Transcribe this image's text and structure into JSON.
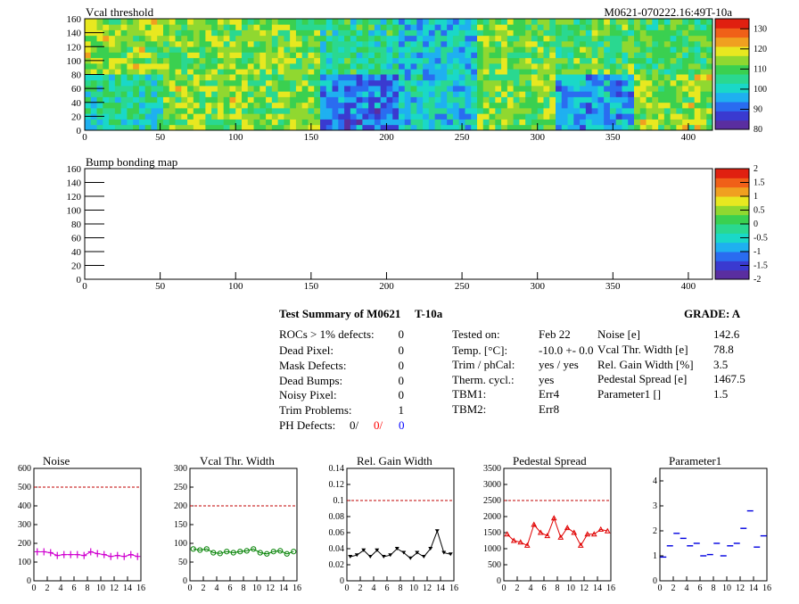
{
  "colors": {
    "palette": [
      "#5a2ea0",
      "#3a3ad0",
      "#2a6cf0",
      "#1fb0f0",
      "#1ad8c8",
      "#2ad890",
      "#3ad050",
      "#90d830",
      "#e8e820",
      "#f0a020",
      "#f06018",
      "#e02010"
    ],
    "noise": "#d000d0",
    "vcal": "#008000",
    "gain": "#000000",
    "pedestal": "#e00000",
    "param1": "#0000e0",
    "ref": "#c00000",
    "red": "#ff0000",
    "blue": "#0000ff"
  },
  "top_map": {
    "title": "Vcal threshold",
    "module_id": "M0621-070222.16:49T-10a",
    "xticks": [
      "0",
      "50",
      "100",
      "150",
      "200",
      "250",
      "300",
      "350",
      "400"
    ],
    "yticks": [
      "0",
      "20",
      "40",
      "60",
      "80",
      "100",
      "120",
      "140",
      "160"
    ],
    "zticks": [
      "80",
      "90",
      "100",
      "110",
      "120",
      "130"
    ]
  },
  "bump_map": {
    "title": "Bump bonding map",
    "xticks": [
      "0",
      "50",
      "100",
      "150",
      "200",
      "250",
      "300",
      "350",
      "400"
    ],
    "yticks": [
      "0",
      "20",
      "40",
      "60",
      "80",
      "100",
      "120",
      "140",
      "160"
    ],
    "zticks": [
      "2",
      "1.5",
      "1",
      "0.5",
      "0",
      "-0.5",
      "-1",
      "-1.5",
      "-2"
    ]
  },
  "summary": {
    "title": "Test Summary of M0621",
    "temp_label": "T-10a",
    "grade": "GRADE:  A",
    "left": [
      {
        "label": "ROCs > 1% defects:",
        "value": "0"
      },
      {
        "label": "Dead Pixel:",
        "value": "0"
      },
      {
        "label": "Mask Defects:",
        "value": "0"
      },
      {
        "label": "Dead Bumps:",
        "value": "0"
      },
      {
        "label": "Noisy Pixel:",
        "value": "0"
      },
      {
        "label": "Trim Problems:",
        "value": "1"
      }
    ],
    "ph_label": "PH Defects:",
    "ph_values": [
      "0/",
      "0/",
      "0"
    ],
    "middle": [
      {
        "label": "Tested on:",
        "value": "Feb 22"
      },
      {
        "label": "Temp. [°C]:",
        "value": "-10.0 +- 0.0"
      },
      {
        "label": "Trim / phCal:",
        "value": "yes / yes"
      },
      {
        "label": "Therm. cycl.:",
        "value": "yes"
      },
      {
        "label": "TBM1:",
        "value": "Err4"
      },
      {
        "label": "TBM2:",
        "value": "Err8"
      }
    ],
    "right": [
      {
        "label": "Noise [e]",
        "value": "142.6"
      },
      {
        "label": "Vcal Thr. Width [e]",
        "value": "78.8"
      },
      {
        "label": "Rel. Gain Width [%]",
        "value": "3.5"
      },
      {
        "label": "Pedestal Spread [e]",
        "value": "1467.5"
      },
      {
        "label": "Parameter1 []",
        "value": "1.5"
      }
    ]
  },
  "chart_data": [
    {
      "type": "heatmap",
      "title": "Vcal threshold",
      "xlim": [
        0,
        416
      ],
      "ylim": [
        0,
        160
      ],
      "zlim": [
        80,
        135
      ],
      "roc_means": [
        [
          114,
          112,
          113,
          105,
          98,
          112,
          110,
          109
        ],
        [
          104,
          114,
          112,
          92,
          100,
          112,
          96,
          114
        ]
      ]
    },
    {
      "type": "heatmap",
      "title": "Bump bonding map",
      "xlim": [
        0,
        416
      ],
      "ylim": [
        0,
        160
      ],
      "zlim": [
        -2,
        2
      ]
    },
    {
      "type": "line",
      "title": "Noise",
      "x": [
        0,
        1,
        2,
        3,
        4,
        5,
        6,
        7,
        8,
        9,
        10,
        11,
        12,
        13,
        14,
        15
      ],
      "values": [
        155,
        155,
        150,
        135,
        140,
        140,
        140,
        135,
        155,
        145,
        140,
        130,
        135,
        130,
        140,
        130
      ],
      "ylim": [
        0,
        600
      ],
      "reference": 500,
      "yticks": [
        "0",
        "100",
        "200",
        "300",
        "400",
        "500",
        "600"
      ],
      "xticks": [
        "0",
        "2",
        "4",
        "6",
        "8",
        "10",
        "12",
        "14",
        "16"
      ]
    },
    {
      "type": "line",
      "title": "Vcal Thr. Width",
      "x": [
        0,
        1,
        2,
        3,
        4,
        5,
        6,
        7,
        8,
        9,
        10,
        11,
        12,
        13,
        14,
        15
      ],
      "values": [
        85,
        82,
        85,
        75,
        73,
        78,
        75,
        78,
        80,
        85,
        75,
        72,
        78,
        80,
        72,
        78
      ],
      "ylim": [
        0,
        300
      ],
      "reference": 200,
      "yticks": [
        "0",
        "50",
        "100",
        "150",
        "200",
        "250",
        "300"
      ],
      "xticks": [
        "0",
        "2",
        "4",
        "6",
        "8",
        "10",
        "12",
        "14",
        "16"
      ]
    },
    {
      "type": "line",
      "title": "Rel. Gain Width",
      "x": [
        0,
        1,
        2,
        3,
        4,
        5,
        6,
        7,
        8,
        9,
        10,
        11,
        12,
        13,
        14,
        15
      ],
      "values": [
        0.03,
        0.032,
        0.038,
        0.03,
        0.038,
        0.03,
        0.032,
        0.04,
        0.035,
        0.028,
        0.035,
        0.03,
        0.04,
        0.062,
        0.035,
        0.033
      ],
      "ylim": [
        0,
        0.14
      ],
      "reference": 0.1,
      "yticks": [
        "0",
        "0.02",
        "0.04",
        "0.06",
        "0.08",
        "0.1",
        "0.12",
        "0.14"
      ],
      "xticks": [
        "0",
        "2",
        "4",
        "6",
        "8",
        "10",
        "12",
        "14",
        "16"
      ]
    },
    {
      "type": "line",
      "title": "Pedestal Spread",
      "x": [
        0,
        1,
        2,
        3,
        4,
        5,
        6,
        7,
        8,
        9,
        10,
        11,
        12,
        13,
        14,
        15
      ],
      "values": [
        1450,
        1250,
        1200,
        1100,
        1750,
        1500,
        1400,
        1950,
        1350,
        1650,
        1500,
        1100,
        1450,
        1450,
        1600,
        1550
      ],
      "ylim": [
        0,
        3500
      ],
      "reference": 2500,
      "yticks": [
        "0",
        "500",
        "1000",
        "1500",
        "2000",
        "2500",
        "3000",
        "3500"
      ],
      "xticks": [
        "0",
        "2",
        "4",
        "6",
        "8",
        "10",
        "12",
        "14",
        "16"
      ]
    },
    {
      "type": "scatter",
      "title": "Parameter1",
      "x": [
        0,
        1,
        2,
        3,
        4,
        5,
        6,
        7,
        8,
        9,
        10,
        11,
        12,
        13,
        14,
        15
      ],
      "values": [
        0.95,
        1.4,
        1.9,
        1.7,
        1.4,
        1.5,
        1.0,
        1.05,
        1.5,
        1.0,
        1.4,
        1.5,
        2.1,
        2.8,
        1.35,
        1.8
      ],
      "ylim": [
        0,
        4.5
      ],
      "yticks": [
        "0",
        "1",
        "2",
        "3",
        "4"
      ],
      "xticks": [
        "0",
        "2",
        "4",
        "6",
        "8",
        "10",
        "12",
        "14",
        "16"
      ]
    }
  ]
}
